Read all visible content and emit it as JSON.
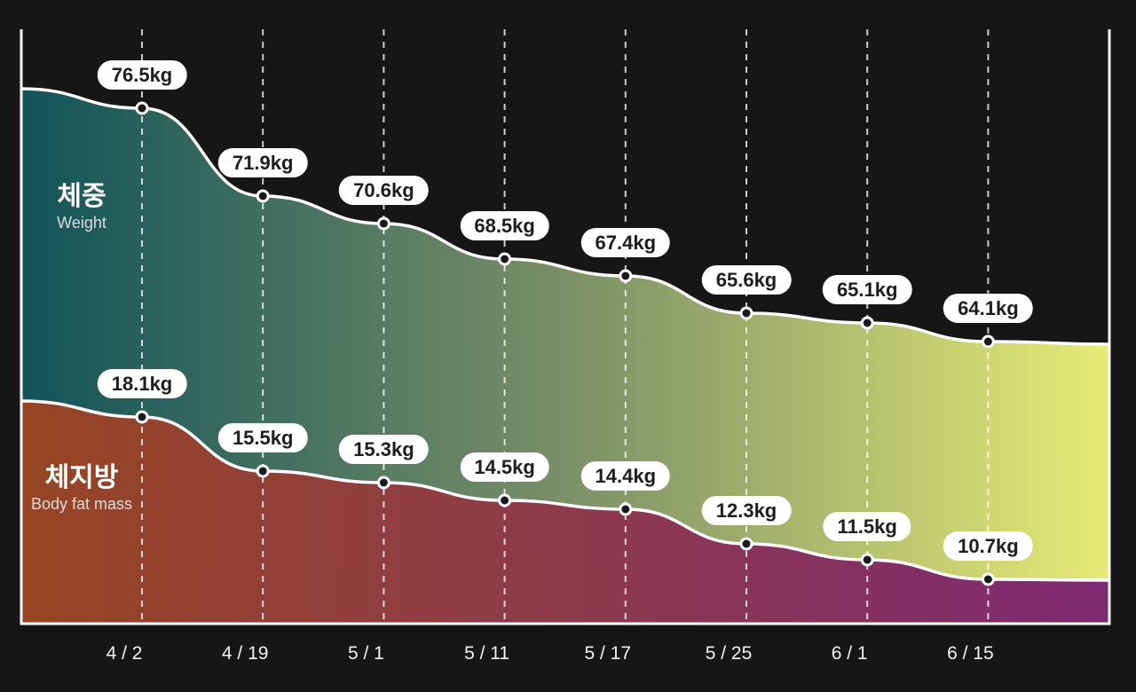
{
  "colors": {
    "background": "#161616",
    "frame": "#ffffff",
    "gridline": "#ffffff",
    "curve": "#ffffff",
    "pill_bg": "#ffffff",
    "pill_text": "#1d1d1d",
    "axis_text": "#f2f2f2",
    "title_text": "#ffffff",
    "subtitle_text": "#dcdcdc",
    "dot_fill": "#1a1a1a",
    "dot_ring": "#ffffff",
    "weight_gradient": [
      "#115358",
      "#7b8f68",
      "#e6eb76"
    ],
    "fat_gradient": [
      "#964524",
      "#8d3a4c",
      "#7e2a72"
    ]
  },
  "chart_data": {
    "type": "area",
    "grid": "dashed-vertical",
    "legend_position": "inside-left",
    "x_labels": [
      "4 / 2",
      "4 / 19",
      "5 / 1",
      "5 / 11",
      "5 / 17",
      "5 / 25",
      "6 / 1",
      "6 / 15"
    ],
    "series": [
      {
        "name_ko": "체중",
        "name_en": "Weight",
        "unit": "kg",
        "values": [
          76.5,
          71.9,
          70.6,
          68.5,
          67.4,
          65.6,
          65.1,
          64.1
        ],
        "labels": [
          "76.5kg",
          "71.9kg",
          "70.6kg",
          "68.5kg",
          "67.4kg",
          "65.6kg",
          "65.1kg",
          "64.1kg"
        ]
      },
      {
        "name_ko": "체지방",
        "name_en": "Body fat mass",
        "unit": "kg",
        "values": [
          18.1,
          15.5,
          15.3,
          14.5,
          14.4,
          12.3,
          11.5,
          10.7
        ],
        "labels": [
          "18.1kg",
          "15.5kg",
          "15.3kg",
          "14.5kg",
          "14.4kg",
          "12.3kg",
          "11.5kg",
          "10.7kg"
        ]
      }
    ]
  }
}
